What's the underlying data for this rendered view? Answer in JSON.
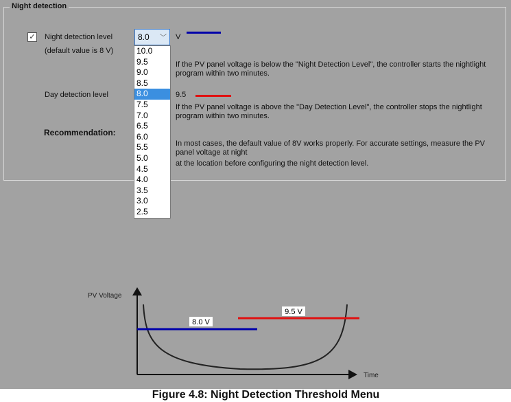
{
  "group_title": "Night detection",
  "night": {
    "checked": true,
    "label": "Night detection level",
    "value": "8.0",
    "unit": "V",
    "default_note": "(default value is 8 V)",
    "line_color": "#0000aa",
    "description": "If the PV panel voltage is below the \"Night Detection Level\", the controller starts the nightlight program within two minutes."
  },
  "dropdown": {
    "options": [
      "10.0",
      "9.5",
      "9.0",
      "8.5",
      "8.0",
      "7.5",
      "7.0",
      "6.5",
      "6.0",
      "5.5",
      "5.0",
      "4.5",
      "4.0",
      "3.5",
      "3.0",
      "2.5"
    ],
    "selected": "8.0"
  },
  "day": {
    "label": "Day detection level",
    "value": "9.5",
    "line_color": "#e01010",
    "description": "If the PV panel voltage is above the \"Day Detection Level\", the controller stops the nightlight program within two minutes."
  },
  "recommendation": {
    "title": "Recommendation:",
    "line1": "In most cases, the default value of 8V works properly. For accurate settings, measure the PV panel voltage at night",
    "line2": "at the location before configuring the night detection level."
  },
  "diagram": {
    "y_label": "PV Voltage",
    "x_label": "Time",
    "night_level_label": "8.0 V",
    "day_level_label": "9.5 V"
  },
  "caption": "Figure 4.8: Night Detection Threshold Menu"
}
